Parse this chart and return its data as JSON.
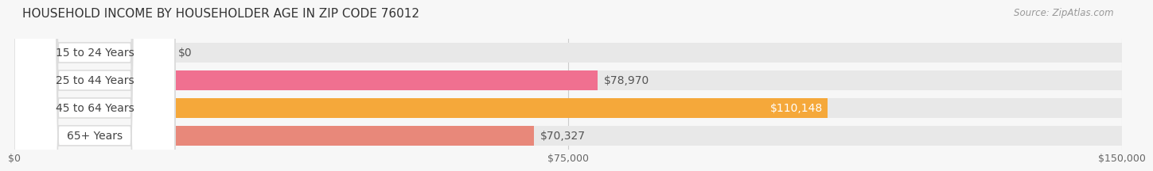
{
  "title": "HOUSEHOLD INCOME BY HOUSEHOLDER AGE IN ZIP CODE 76012",
  "source": "Source: ZipAtlas.com",
  "categories": [
    "15 to 24 Years",
    "25 to 44 Years",
    "45 to 64 Years",
    "65+ Years"
  ],
  "values": [
    0,
    78970,
    110148,
    70327
  ],
  "bar_colors": [
    "#b0b0e0",
    "#f07090",
    "#f5a83a",
    "#e8887a"
  ],
  "bar_bg_color": "#e8e8e8",
  "background_color": "#f7f7f7",
  "max_value": 150000,
  "xticks": [
    0,
    75000,
    150000
  ],
  "xtick_labels": [
    "$0",
    "$75,000",
    "$150,000"
  ],
  "value_labels": [
    "$0",
    "$78,970",
    "$110,148",
    "$70,327"
  ],
  "value_label_inside": [
    false,
    false,
    true,
    false
  ],
  "title_fontsize": 11,
  "label_fontsize": 10,
  "tick_fontsize": 9,
  "source_fontsize": 8.5
}
